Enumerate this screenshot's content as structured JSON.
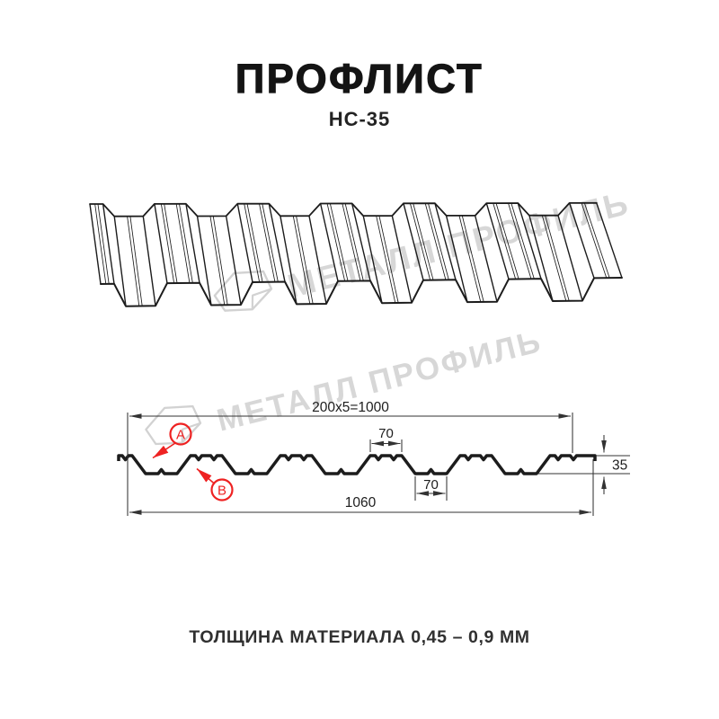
{
  "header": {
    "title": "ПРОФЛИСТ",
    "subtitle": "НС-35"
  },
  "watermark": {
    "text": "МЕТАЛЛ ПРОФИЛЬ"
  },
  "dimensions": {
    "coverage": "200x5=1000",
    "crest_width": "70",
    "trough_width": "70",
    "overall_width": "1060",
    "height": "35"
  },
  "section_labels": {
    "a": "A",
    "b": "B"
  },
  "footer": {
    "thickness_note": "ТОЛЩИНА МАТЕРИАЛА 0,45 – 0,9 ММ"
  },
  "colors": {
    "line": "#1c1c1c",
    "dim": "#333333",
    "accent_red": "#ee2222",
    "watermark": "#d7d7d7"
  }
}
